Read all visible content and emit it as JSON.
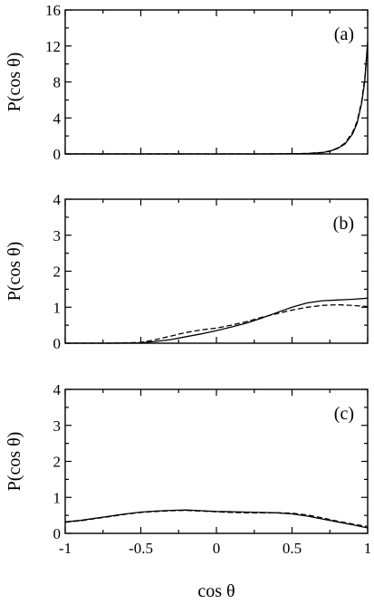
{
  "figure": {
    "xlabel": "cos θ"
  },
  "chart_data": [
    {
      "type": "line",
      "panel_label": "(a)",
      "ylabel": "P(cos θ)",
      "xlim": [
        -1,
        1
      ],
      "ylim": [
        0,
        16
      ],
      "xticks": [
        -1,
        -0.5,
        0,
        0.5,
        1
      ],
      "yticks": [
        0,
        4,
        8,
        12,
        16
      ],
      "series": [
        {
          "style": "solid",
          "x": [
            -1,
            0.3,
            0.5,
            0.6,
            0.7,
            0.75,
            0.8,
            0.85,
            0.9,
            0.93,
            0.96,
            0.98,
            1.0
          ],
          "y": [
            0,
            0,
            0.02,
            0.05,
            0.15,
            0.3,
            0.6,
            1.1,
            2.2,
            3.4,
            5.6,
            8.0,
            12.5
          ]
        },
        {
          "style": "dashed",
          "x": [
            -1,
            0.3,
            0.5,
            0.6,
            0.7,
            0.75,
            0.8,
            0.85,
            0.9,
            0.93,
            0.96,
            0.98,
            1.0
          ],
          "y": [
            0,
            0,
            0.02,
            0.06,
            0.17,
            0.33,
            0.65,
            1.2,
            2.4,
            3.6,
            5.8,
            8.3,
            12.0
          ]
        }
      ]
    },
    {
      "type": "line",
      "panel_label": "(b)",
      "ylabel": "P(cos θ)",
      "xlim": [
        -1,
        1
      ],
      "ylim": [
        0,
        4
      ],
      "xticks": [
        -1,
        -0.5,
        0,
        0.5,
        1
      ],
      "yticks": [
        0,
        1,
        2,
        3,
        4
      ],
      "series": [
        {
          "style": "solid",
          "x": [
            -1,
            -0.7,
            -0.5,
            -0.4,
            -0.3,
            -0.2,
            -0.1,
            0,
            0.1,
            0.2,
            0.3,
            0.4,
            0.5,
            0.6,
            0.7,
            0.8,
            0.9,
            1.0
          ],
          "y": [
            0,
            0,
            0.01,
            0.05,
            0.1,
            0.18,
            0.26,
            0.35,
            0.45,
            0.56,
            0.7,
            0.85,
            1.0,
            1.12,
            1.18,
            1.2,
            1.22,
            1.25
          ]
        },
        {
          "style": "dashed",
          "x": [
            -1,
            -0.7,
            -0.5,
            -0.4,
            -0.3,
            -0.2,
            -0.1,
            0,
            0.1,
            0.2,
            0.3,
            0.4,
            0.5,
            0.6,
            0.7,
            0.8,
            0.9,
            1.0
          ],
          "y": [
            0,
            0,
            0.02,
            0.1,
            0.2,
            0.3,
            0.37,
            0.42,
            0.5,
            0.6,
            0.72,
            0.82,
            0.92,
            1.0,
            1.05,
            1.07,
            1.05,
            1.02
          ]
        }
      ]
    },
    {
      "type": "line",
      "panel_label": "(c)",
      "ylabel": "P(cos θ)",
      "xlim": [
        -1,
        1
      ],
      "ylim": [
        0,
        4
      ],
      "xticks": [
        -1,
        -0.5,
        0,
        0.5,
        1
      ],
      "yticks": [
        0,
        1,
        2,
        3,
        4
      ],
      "xticklabels": [
        "-1",
        "-0.5",
        "0",
        "0.5",
        "1"
      ],
      "series": [
        {
          "style": "solid",
          "x": [
            -1,
            -0.9,
            -0.8,
            -0.7,
            -0.6,
            -0.5,
            -0.4,
            -0.3,
            -0.2,
            -0.1,
            0,
            0.1,
            0.2,
            0.3,
            0.4,
            0.5,
            0.6,
            0.7,
            0.8,
            0.9,
            1.0
          ],
          "y": [
            0.32,
            0.36,
            0.42,
            0.48,
            0.54,
            0.59,
            0.62,
            0.64,
            0.65,
            0.63,
            0.61,
            0.6,
            0.59,
            0.58,
            0.57,
            0.54,
            0.48,
            0.4,
            0.32,
            0.24,
            0.15
          ]
        },
        {
          "style": "dashed",
          "x": [
            -1,
            -0.9,
            -0.8,
            -0.7,
            -0.6,
            -0.5,
            -0.4,
            -0.3,
            -0.2,
            -0.1,
            0,
            0.1,
            0.2,
            0.3,
            0.4,
            0.5,
            0.6,
            0.7,
            0.8,
            0.9,
            1.0
          ],
          "y": [
            0.31,
            0.35,
            0.41,
            0.47,
            0.53,
            0.58,
            0.61,
            0.63,
            0.64,
            0.62,
            0.6,
            0.58,
            0.57,
            0.57,
            0.57,
            0.56,
            0.51,
            0.43,
            0.34,
            0.26,
            0.19
          ]
        }
      ]
    }
  ]
}
